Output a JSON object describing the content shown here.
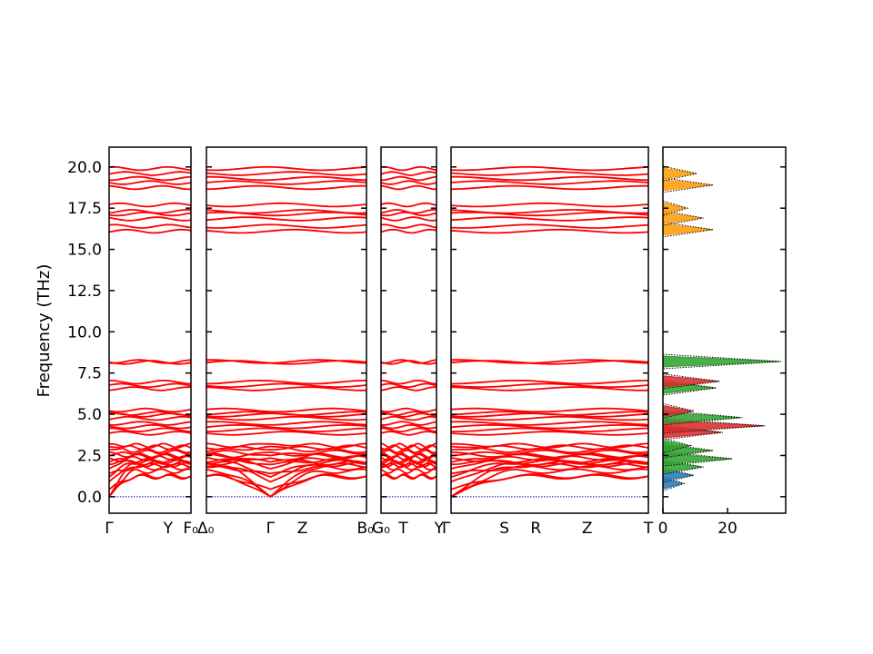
{
  "figure": {
    "ylabel": "Frequency (THz)"
  },
  "chart_data": {
    "type": "line",
    "title": "",
    "ylabel": "Frequency (THz)",
    "ylim": [
      -1.0,
      21.2
    ],
    "yticks": [
      "0.0",
      "2.5",
      "5.0",
      "7.5",
      "10.0",
      "12.5",
      "15.0",
      "17.5",
      "20.0"
    ],
    "ytick_values": [
      0,
      2.5,
      5.0,
      7.5,
      10.0,
      12.5,
      15.0,
      17.5,
      20.0
    ],
    "colors": {
      "bands": "#ff0000",
      "zero_line": "#0000cc",
      "dos_outline": "#000000",
      "pdos_high": "#ff9900",
      "pdos_mid": "#2ca02c",
      "pdos_low_red": "#d62728",
      "pdos_low_blue": "#1f77b4"
    },
    "band_panels": [
      {
        "segments": [
          {
            "labels": [
              "Γ",
              "Y",
              "F₀"
            ],
            "kpoints": [
              0,
              0.72,
              1.0
            ]
          }
        ]
      },
      {
        "segments": [
          {
            "labels": [
              "Δ₀",
              "Γ",
              "Z",
              "B₀"
            ],
            "kpoints": [
              0,
              0.4,
              0.6,
              1.0
            ]
          }
        ]
      },
      {
        "segments": [
          {
            "labels": [
              "G₀",
              "T",
              "Y"
            ],
            "kpoints": [
              0,
              0.4,
              1.0
            ]
          }
        ]
      },
      {
        "segments": [
          {
            "labels": [
              "Γ",
              "S",
              "R",
              "Z",
              "T"
            ],
            "kpoints": [
              0,
              0.27,
              0.43,
              0.69,
              1.0
            ]
          }
        ]
      }
    ],
    "dispersive_bands": [
      {
        "gamma_value": 0.0,
        "edge_value": 1.25
      },
      {
        "gamma_value": 0.0,
        "edge_value": 1.55
      },
      {
        "gamma_value": 0.0,
        "edge_value": 1.9
      },
      {
        "gamma_value": 0.45,
        "edge_value": 1.2
      },
      {
        "gamma_value": 0.9,
        "edge_value": 1.95
      },
      {
        "gamma_value": 1.2,
        "edge_value": 2.1
      },
      {
        "gamma_value": 1.4,
        "edge_value": 1.75
      },
      {
        "gamma_value": 1.7,
        "edge_value": 2.35
      },
      {
        "gamma_value": 1.95,
        "edge_value": 2.2
      },
      {
        "gamma_value": 2.1,
        "edge_value": 2.5
      },
      {
        "gamma_value": 2.35,
        "edge_value": 2.05
      },
      {
        "gamma_value": 2.5,
        "edge_value": 2.7
      },
      {
        "gamma_value": 2.7,
        "edge_value": 2.45
      },
      {
        "gamma_value": 2.85,
        "edge_value": 3.0
      },
      {
        "gamma_value": 3.05,
        "edge_value": 2.8
      },
      {
        "gamma_value": 3.2,
        "edge_value": 3.1
      }
    ],
    "flat_bands": [
      3.85,
      4.05,
      4.25,
      4.45,
      4.75,
      4.95,
      5.05,
      5.25,
      6.55,
      6.75,
      6.95,
      8.15,
      8.2,
      16.1,
      16.4,
      16.85,
      17.15,
      17.3,
      17.7,
      18.75,
      19.05,
      19.3,
      19.6,
      19.9
    ],
    "dos": {
      "xticks": [
        "0",
        "20"
      ],
      "xtick_values": [
        0,
        20
      ],
      "xlim": [
        0,
        38
      ],
      "peaks": [
        {
          "freq": 0.8,
          "value": 6,
          "group": "low_blue"
        },
        {
          "freq": 1.3,
          "value": 9,
          "group": "low_blue"
        },
        {
          "freq": 1.8,
          "value": 12,
          "group": "mid"
        },
        {
          "freq": 2.3,
          "value": 21,
          "group": "mid"
        },
        {
          "freq": 2.8,
          "value": 15,
          "group": "mid"
        },
        {
          "freq": 3.1,
          "value": 8,
          "group": "mid"
        },
        {
          "freq": 3.9,
          "value": 18,
          "group": "low_red"
        },
        {
          "freq": 4.3,
          "value": 31,
          "group": "low_red"
        },
        {
          "freq": 4.8,
          "value": 24,
          "group": "mid"
        },
        {
          "freq": 5.2,
          "value": 9,
          "group": "low_red"
        },
        {
          "freq": 6.6,
          "value": 16,
          "group": "mid"
        },
        {
          "freq": 7.0,
          "value": 17,
          "group": "low_red"
        },
        {
          "freq": 8.2,
          "value": 36,
          "group": "mid"
        },
        {
          "freq": 16.2,
          "value": 15,
          "group": "high"
        },
        {
          "freq": 16.9,
          "value": 12,
          "group": "high"
        },
        {
          "freq": 17.5,
          "value": 7,
          "group": "high"
        },
        {
          "freq": 18.9,
          "value": 15,
          "group": "high"
        },
        {
          "freq": 19.6,
          "value": 10,
          "group": "high"
        }
      ]
    }
  }
}
